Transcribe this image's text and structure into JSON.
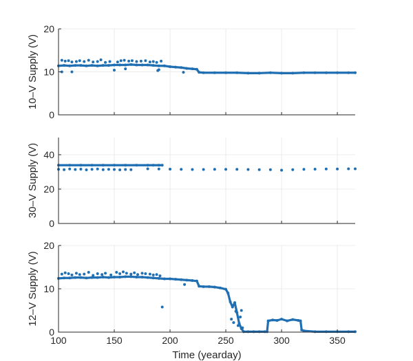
{
  "chart_data": [
    {
      "type": "scatter",
      "ylabel": "10–V Supply (V)",
      "ylim": [
        0,
        20
      ],
      "yticks": [
        0,
        10,
        20
      ],
      "xlim": [
        100,
        366
      ],
      "xticks": [
        100,
        150,
        200,
        250,
        300,
        350
      ],
      "xticklabels": [],
      "color": "#1f6fb2",
      "series": [
        {
          "x": [
            100,
            105,
            110,
            115,
            120,
            125,
            130,
            135,
            140,
            145,
            150,
            155,
            160,
            165,
            170,
            175,
            180,
            185,
            190,
            195,
            200,
            205,
            210,
            215,
            220,
            224,
            226,
            230,
            240,
            250,
            260,
            270,
            280,
            290,
            300,
            310,
            320,
            330,
            340,
            350,
            360,
            366
          ],
          "y": [
            11.4,
            11.5,
            11.4,
            11.5,
            11.5,
            11.4,
            11.5,
            11.4,
            11.5,
            11.5,
            11.6,
            11.6,
            11.6,
            11.7,
            11.6,
            11.6,
            11.6,
            11.5,
            11.4,
            11.4,
            11.2,
            11.1,
            11.0,
            10.8,
            10.7,
            10.6,
            9.9,
            9.8,
            9.8,
            9.8,
            9.8,
            9.7,
            9.7,
            9.8,
            9.7,
            9.7,
            9.8,
            9.8,
            9.8,
            9.8,
            9.8,
            9.8
          ]
        },
        {
          "x": [
            103,
            106,
            109,
            112,
            116,
            119,
            123,
            127,
            131,
            135,
            138,
            142,
            146,
            153,
            156,
            159,
            163,
            166,
            170,
            174,
            178,
            182,
            185,
            188,
            192
          ],
          "y": [
            12.7,
            12.5,
            12.6,
            12.3,
            12.4,
            12.6,
            12.4,
            12.7,
            12.3,
            12.4,
            12.8,
            12.2,
            12.4,
            12.3,
            12.6,
            12.7,
            12.5,
            12.6,
            12.4,
            12.5,
            12.6,
            12.3,
            12.4,
            12.2,
            12.5
          ]
        },
        {
          "x": [
            103,
            112,
            150,
            160,
            189,
            190,
            212
          ],
          "y": [
            10.0,
            10.0,
            10.4,
            10.7,
            10.3,
            10.5,
            9.9
          ]
        }
      ]
    },
    {
      "type": "scatter",
      "ylabel": "30–V Supply (V)",
      "ylim": [
        0,
        50
      ],
      "yticks": [
        0,
        20,
        40
      ],
      "xlim": [
        100,
        366
      ],
      "xticks": [
        100,
        150,
        200,
        250,
        300,
        350
      ],
      "xticklabels": [],
      "color": "#1f6fb2",
      "series": [
        {
          "x": [
            100,
            110,
            120,
            130,
            140,
            150,
            160,
            170,
            180,
            185,
            190,
            193
          ],
          "y": [
            33.9,
            33.9,
            33.9,
            33.9,
            33.9,
            33.9,
            33.9,
            33.9,
            33.9,
            33.9,
            33.9,
            33.9
          ]
        },
        {
          "x": [
            100,
            105,
            110,
            115,
            120,
            125,
            130,
            135,
            140,
            145,
            150,
            155,
            160,
            165
          ],
          "y": [
            31.5,
            31.3,
            31.7,
            31.4,
            31.6,
            31.2,
            31.5,
            31.7,
            31.3,
            31.5,
            31.4,
            31.2,
            31.4,
            31.3
          ]
        },
        {
          "x": [
            180,
            190,
            200,
            210,
            220,
            230,
            240,
            250,
            260,
            270,
            280,
            290,
            300,
            310,
            320,
            330,
            340,
            350,
            360,
            366
          ],
          "y": [
            31.8,
            31.7,
            31.6,
            31.5,
            31.4,
            31.4,
            31.5,
            31.5,
            31.5,
            31.4,
            31.3,
            31.3,
            31.0,
            31.3,
            31.5,
            31.6,
            31.7,
            31.7,
            31.8,
            31.8
          ]
        }
      ]
    },
    {
      "type": "scatter",
      "ylabel": "12–V Supply (V)",
      "ylim": [
        0,
        20
      ],
      "yticks": [
        0,
        10,
        20
      ],
      "xlim": [
        100,
        366
      ],
      "xticks": [
        100,
        150,
        200,
        250,
        300,
        350
      ],
      "xticklabels": [
        "100",
        "150",
        "200",
        "250",
        "300",
        "350"
      ],
      "xlabel": "Time (yearday)",
      "color": "#1f6fb2",
      "series": [
        {
          "x": [
            100,
            105,
            110,
            115,
            120,
            125,
            130,
            135,
            140,
            145,
            150,
            155,
            160,
            165,
            170,
            175,
            180,
            185,
            190,
            195,
            200,
            205,
            210,
            215,
            220,
            224,
            226,
            230,
            235,
            240,
            245,
            250,
            252,
            254,
            256,
            258,
            260,
            262,
            264,
            266,
            270,
            275,
            280,
            285,
            287,
            288,
            292,
            296,
            300,
            305,
            310,
            315,
            317,
            318,
            320,
            330,
            340,
            350,
            360,
            366
          ],
          "y": [
            12.4,
            12.5,
            12.5,
            12.6,
            12.6,
            12.5,
            12.6,
            12.6,
            12.7,
            12.6,
            12.7,
            12.7,
            12.8,
            12.8,
            12.7,
            12.7,
            12.6,
            12.5,
            12.4,
            12.3,
            12.3,
            12.2,
            12.1,
            12.0,
            11.9,
            11.8,
            10.6,
            10.5,
            10.5,
            10.4,
            10.2,
            9.9,
            9.0,
            7.0,
            5.8,
            6.8,
            4.5,
            2.0,
            0.8,
            0.1,
            0.1,
            0.1,
            0.1,
            0.1,
            0.1,
            2.6,
            2.8,
            2.7,
            3.0,
            2.6,
            2.9,
            2.7,
            2.6,
            0.5,
            0.3,
            0.1,
            0.1,
            0.1,
            0.1,
            0.1
          ]
        },
        {
          "x": [
            103,
            106,
            109,
            112,
            116,
            119,
            123,
            127,
            131,
            135,
            139,
            142,
            147,
            152,
            155,
            158,
            161,
            165,
            168,
            171,
            175,
            178,
            182,
            185,
            188,
            191
          ],
          "y": [
            13.4,
            13.7,
            13.5,
            13.2,
            13.6,
            13.3,
            13.4,
            13.8,
            13.1,
            13.5,
            13.3,
            13.6,
            13.2,
            13.8,
            13.5,
            13.9,
            13.6,
            13.4,
            13.7,
            13.3,
            13.6,
            13.5,
            13.4,
            13.2,
            13.3,
            13.0
          ]
        },
        {
          "x": [
            193,
            213,
            255,
            257,
            259,
            261,
            263,
            264,
            265
          ],
          "y": [
            5.8,
            11.0,
            3.0,
            2.2,
            4.8,
            1.5,
            3.5,
            5.0,
            1.0
          ]
        }
      ]
    }
  ]
}
